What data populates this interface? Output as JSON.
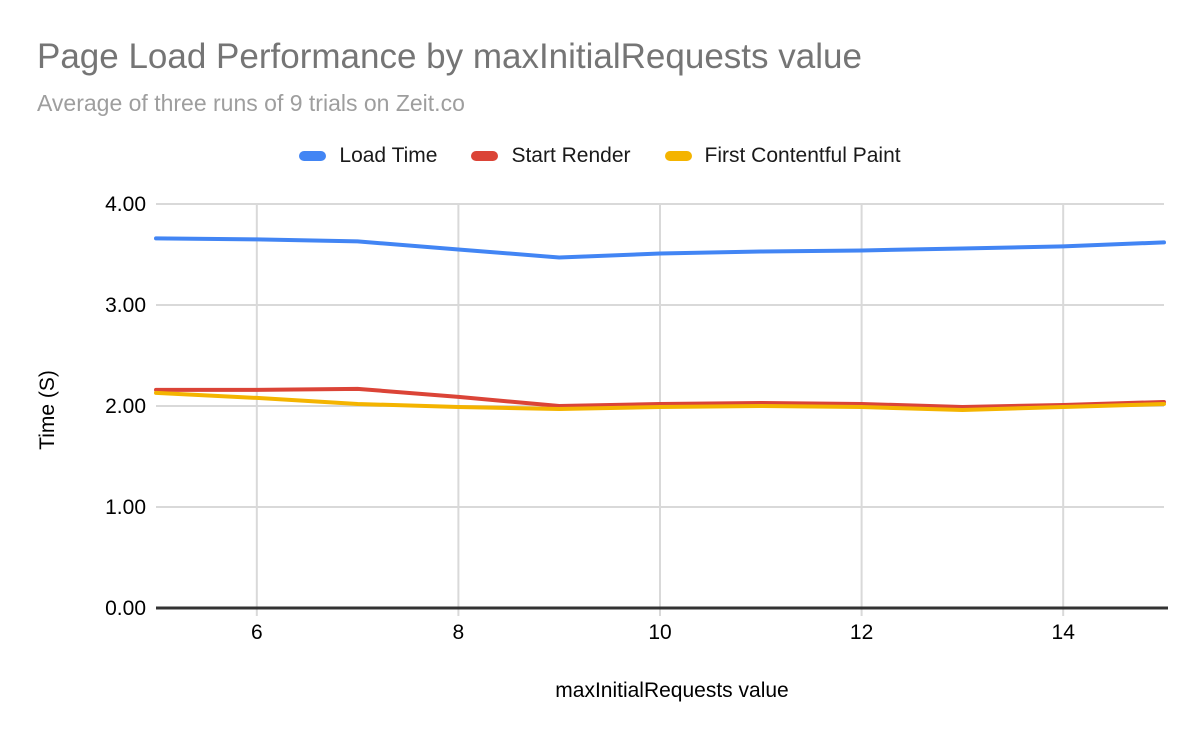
{
  "title": "Page Load Performance by maxInitialRequests value",
  "subtitle": "Average of three runs of 9 trials on Zeit.co",
  "colors": {
    "title_text": "#757575",
    "subtitle_text": "#9e9e9e",
    "axis_text": "#000000",
    "gridline": "#d9d9d9",
    "axis_line": "#333333",
    "background": "#ffffff"
  },
  "chart_data": {
    "type": "line",
    "title": "Page Load Performance by maxInitialRequests value",
    "subtitle": "Average of three runs of 9 trials on Zeit.co",
    "xlabel": "maxInitialRequests value",
    "ylabel": "Time (S)",
    "xlim": [
      5,
      15
    ],
    "ylim": [
      0,
      4
    ],
    "xticks": [
      6,
      8,
      10,
      12,
      14
    ],
    "yticks": [
      0,
      1,
      2,
      3,
      4
    ],
    "ytick_labels": [
      "0.00",
      "1.00",
      "2.00",
      "3.00",
      "4.00"
    ],
    "grid": true,
    "legend_position": "top",
    "x": [
      5,
      6,
      7,
      8,
      9,
      10,
      11,
      12,
      13,
      14,
      15
    ],
    "series": [
      {
        "name": "Load Time",
        "color": "#4285f4",
        "values": [
          3.66,
          3.65,
          3.63,
          3.55,
          3.47,
          3.51,
          3.53,
          3.54,
          3.56,
          3.58,
          3.62
        ]
      },
      {
        "name": "Start Render",
        "color": "#db4437",
        "values": [
          2.16,
          2.16,
          2.17,
          2.09,
          2.0,
          2.02,
          2.03,
          2.02,
          1.99,
          2.01,
          2.04
        ]
      },
      {
        "name": "First Contentful Paint",
        "color": "#f4b400",
        "values": [
          2.13,
          2.08,
          2.02,
          1.99,
          1.97,
          1.99,
          2.0,
          1.99,
          1.96,
          1.99,
          2.02
        ]
      }
    ]
  }
}
